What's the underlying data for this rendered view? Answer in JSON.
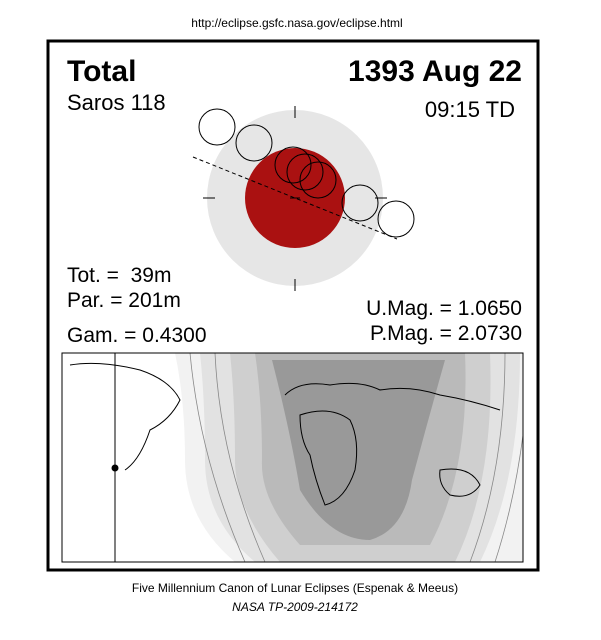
{
  "url": "http://eclipse.gsfc.nasa.gov/eclipse.html",
  "panel": {
    "eclipse_type": "Total",
    "date": "1393 Aug 22",
    "saros": "Saros 118",
    "time": "09:15 TD",
    "total_duration": "Tot. =  39m",
    "partial_duration": "Par. = 201m",
    "gamma": "Gam. = 0.4300",
    "umbral_magnitude": "U.Mag. = 1.0650",
    "penumbral_magnitude": "P.Mag. = 2.0730"
  },
  "footer": {
    "credit": "Five Millennium Canon of Lunar Eclipses (Espenak & Meeus)",
    "publication": "NASA TP-2009-214172"
  }
}
